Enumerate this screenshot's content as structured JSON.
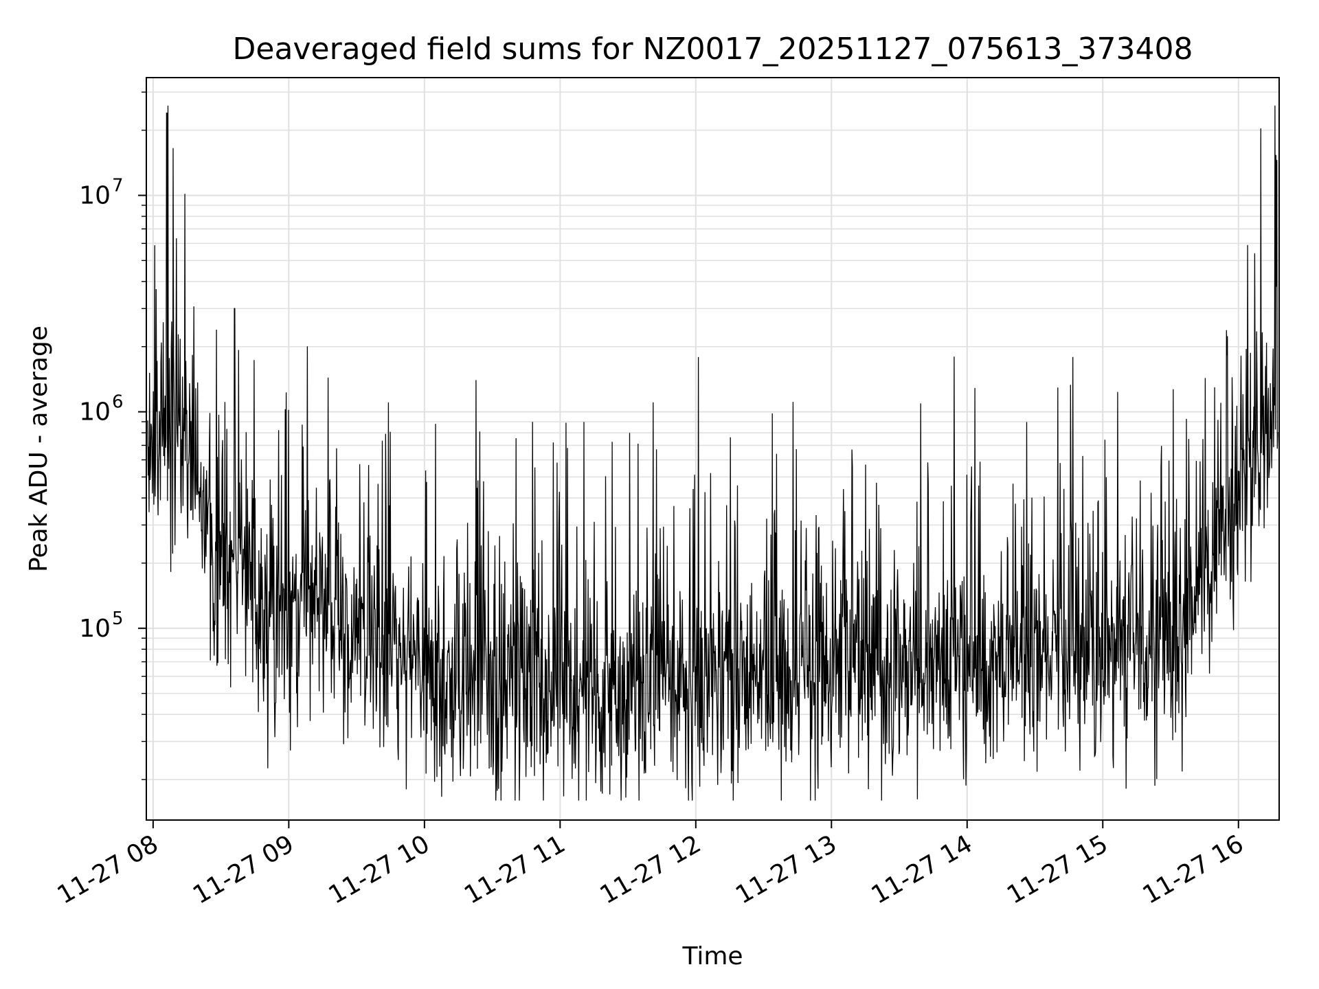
{
  "chart_data": {
    "type": "line",
    "title": "Deaveraged field sums for NZ0017_20251127_075613_373408",
    "xlabel": "Time",
    "ylabel": "Peak ADU - average",
    "yscale": "log",
    "ylim": [
      13000,
      35000000
    ],
    "xlim_hours": [
      7.95,
      16.3
    ],
    "x_tick_labels": [
      "11-27 08",
      "11-27 09",
      "11-27 10",
      "11-27 11",
      "11-27 12",
      "11-27 13",
      "11-27 14",
      "11-27 15",
      "11-27 16"
    ],
    "x_tick_hours": [
      8,
      9,
      10,
      11,
      12,
      13,
      14,
      15,
      16
    ],
    "y_tick_labels": [
      {
        "base": "10",
        "exp": "5",
        "value": 100000
      },
      {
        "base": "10",
        "exp": "6",
        "value": 1000000
      },
      {
        "base": "10",
        "exp": "7",
        "value": 10000000
      }
    ],
    "grid": true,
    "line_color": "#000000",
    "grid_color": "#e0e0e0",
    "series": [
      {
        "name": "deaveraged field sum",
        "envelope_hours": [
          7.95,
          8.1,
          8.3,
          8.45,
          8.6,
          8.8,
          9.2,
          9.6,
          10.0,
          10.5,
          11.0,
          11.5,
          12.0,
          12.5,
          13.0,
          13.5,
          14.0,
          14.5,
          15.0,
          15.4,
          15.6,
          15.8,
          16.0,
          16.15,
          16.3
        ],
        "median_values": [
          600000,
          800000,
          700000,
          200000,
          230000,
          110000,
          130000,
          85000,
          65000,
          55000,
          50000,
          48000,
          60000,
          58000,
          62000,
          70000,
          75000,
          70000,
          72000,
          75000,
          100000,
          200000,
          500000,
          700000,
          900000
        ],
        "spike_peaks": [
          {
            "hour": 8.1,
            "value": 24000000
          },
          {
            "hour": 8.6,
            "value": 3000000
          },
          {
            "hour": 16.27,
            "value": 26000000
          },
          {
            "hour": 16.12,
            "value": 5400000
          }
        ],
        "min_value": 16000,
        "max_value": 26000000
      }
    ]
  }
}
